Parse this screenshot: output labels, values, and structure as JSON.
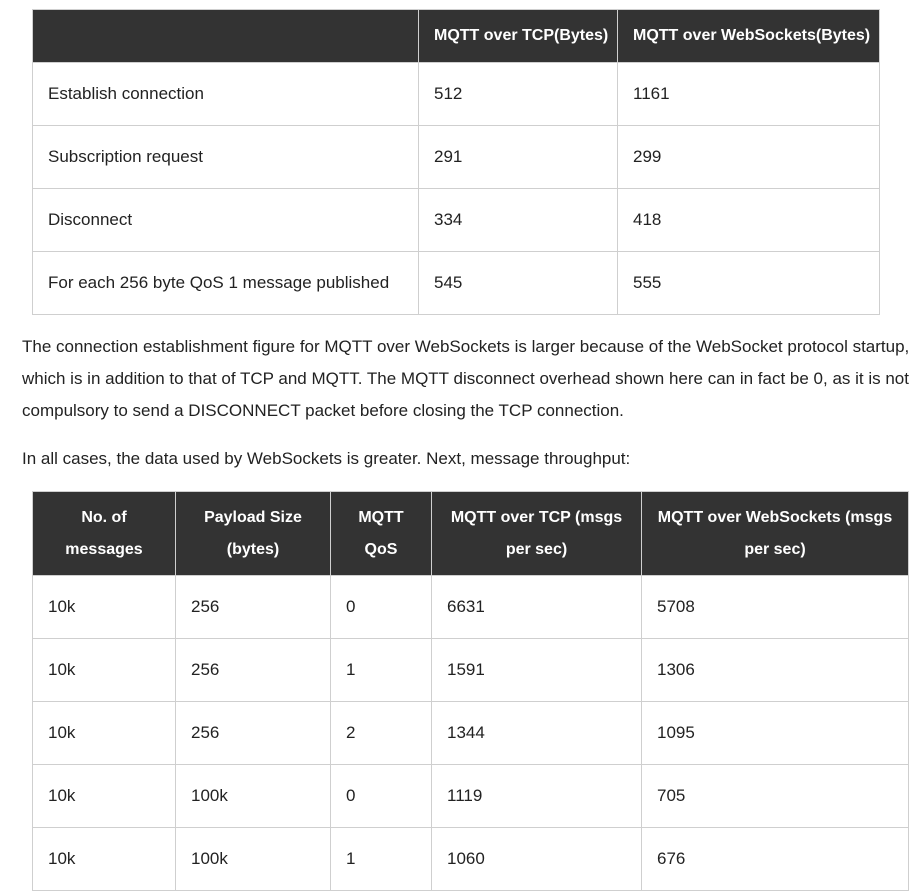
{
  "overhead_table": {
    "headers": [
      "",
      "MQTT over TCP(Bytes)",
      "MQTT over WebSockets(Bytes)"
    ],
    "rows": [
      [
        "Establish connection",
        "512",
        "1161"
      ],
      [
        "Subscription request",
        "291",
        "299"
      ],
      [
        "Disconnect",
        "334",
        "418"
      ],
      [
        "For each 256 byte QoS 1 message published",
        "545",
        "555"
      ]
    ]
  },
  "paragraphs": {
    "p1": "The connection establishment figure for MQTT over WebSockets is larger because of the WebSocket protocol startup, which is in addition to that of TCP and MQTT. The MQTT disconnect overhead shown here can in fact be 0, as it is not compulsory to send a DISCONNECT packet before closing the TCP connection.",
    "p2": "In all cases, the data used by WebSockets is greater. Next, message throughput:"
  },
  "throughput_table": {
    "headers": [
      "No. of messages",
      "Payload Size (bytes)",
      "MQTT QoS",
      "MQTT over TCP (msgs per sec)",
      "MQTT over WebSockets (msgs per sec)"
    ],
    "rows": [
      [
        "10k",
        "256",
        "0",
        "6631",
        "5708"
      ],
      [
        "10k",
        "256",
        "1",
        "1591",
        "1306"
      ],
      [
        "10k",
        "256",
        "2",
        "1344",
        "1095"
      ],
      [
        "10k",
        "100k",
        "0",
        "1119",
        "705"
      ],
      [
        "10k",
        "100k",
        "1",
        "1060",
        "676"
      ]
    ]
  }
}
